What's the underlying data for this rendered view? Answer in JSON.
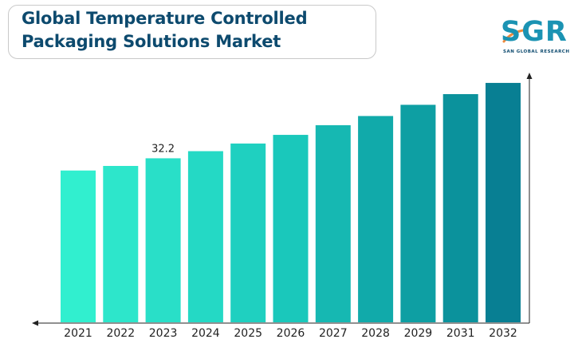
{
  "title": {
    "line1": "Global Temperature Controlled",
    "line2": "Packaging Solutions Market"
  },
  "logo": {
    "text": "SGR",
    "subtitle": "SAN GLOBAL RESEARCH",
    "colors": {
      "main": "#1b93b3",
      "accent": "#f08a3c",
      "dark": "#0d4a6e"
    }
  },
  "chart_data": {
    "type": "bar",
    "categories": [
      "2021",
      "2022",
      "2023",
      "2024",
      "2025",
      "2026",
      "2027",
      "2028",
      "2029",
      "2031",
      "2032"
    ],
    "values": [
      29.8,
      30.7,
      32.2,
      33.6,
      35.1,
      36.8,
      38.7,
      40.5,
      42.7,
      44.8,
      47.0
    ],
    "data_labels": [
      {
        "index": 2,
        "text": "32.2"
      }
    ],
    "bar_colors": [
      "#31efcf",
      "#2de6cb",
      "#29dfc8",
      "#24d9c5",
      "#1fd0c0",
      "#1ac8bb",
      "#16b8b2",
      "#11aaaa",
      "#0e9fa3",
      "#0b929c",
      "#087f93"
    ],
    "ylim": [
      0,
      52
    ],
    "grid": false,
    "legend": "none",
    "xlabel": "",
    "ylabel": ""
  }
}
